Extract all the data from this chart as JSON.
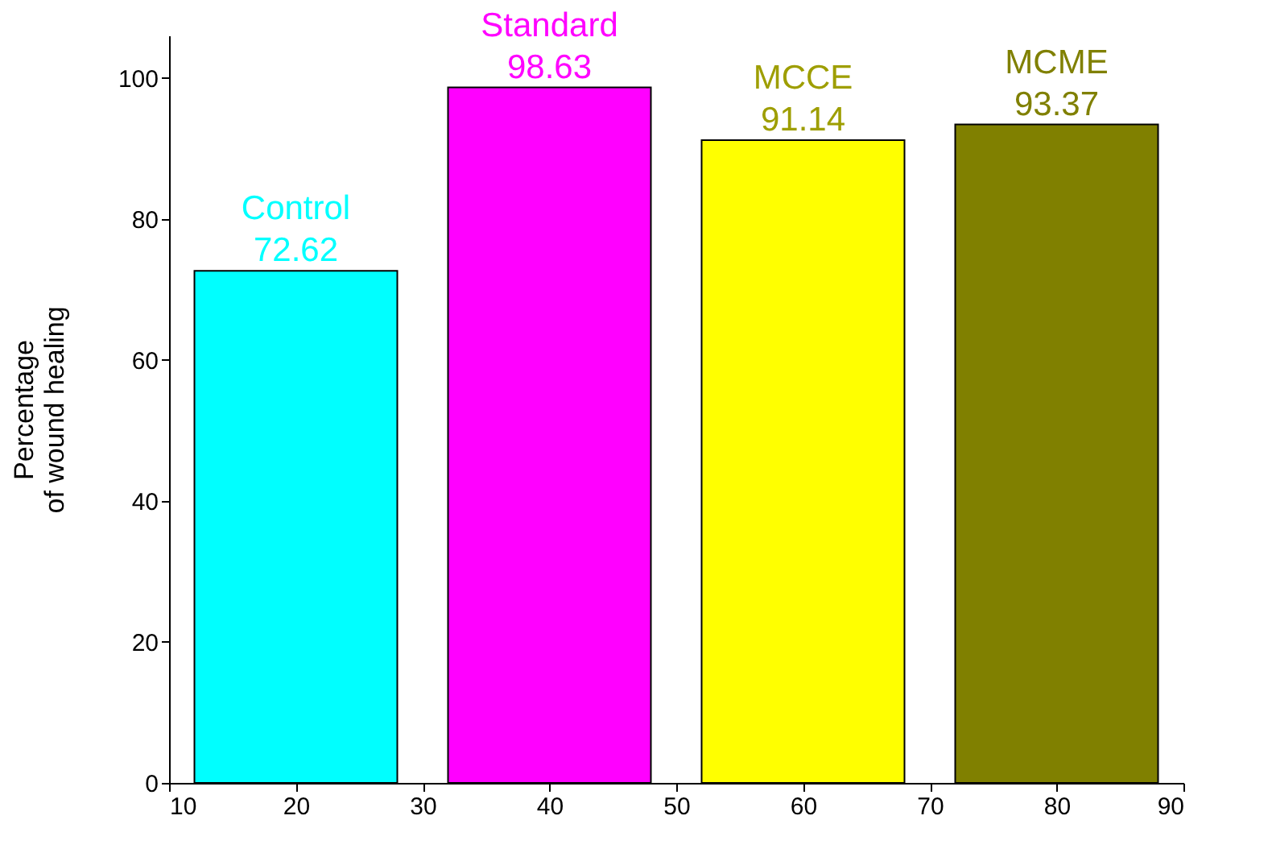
{
  "chart_data": {
    "type": "bar",
    "x": [
      20,
      40,
      60,
      80
    ],
    "values": [
      72.62,
      98.63,
      91.14,
      93.37
    ],
    "colors": [
      "#00ffff",
      "#ff00ff",
      "#ffff00",
      "#808000"
    ],
    "ylabel": "Percentage\nof wound healing",
    "annotations": [
      {
        "text": "Control",
        "x": 20,
        "y": 72.62
      },
      {
        "text": "Standard",
        "x": 40,
        "y": 98.63
      },
      {
        "text": "MCCE",
        "x": 60,
        "y": 91.14
      },
      {
        "text": "MCME",
        "x": 80,
        "y": 93.37
      }
    ],
    "data_labels": true,
    "xlim": [
      10,
      90
    ],
    "xticks": [
      10,
      20,
      30,
      40,
      50,
      60,
      70,
      80,
      90
    ],
    "ylim": [
      0,
      106
    ],
    "yticks": [
      0,
      20,
      40,
      60,
      80,
      100
    ],
    "grid": false
  }
}
